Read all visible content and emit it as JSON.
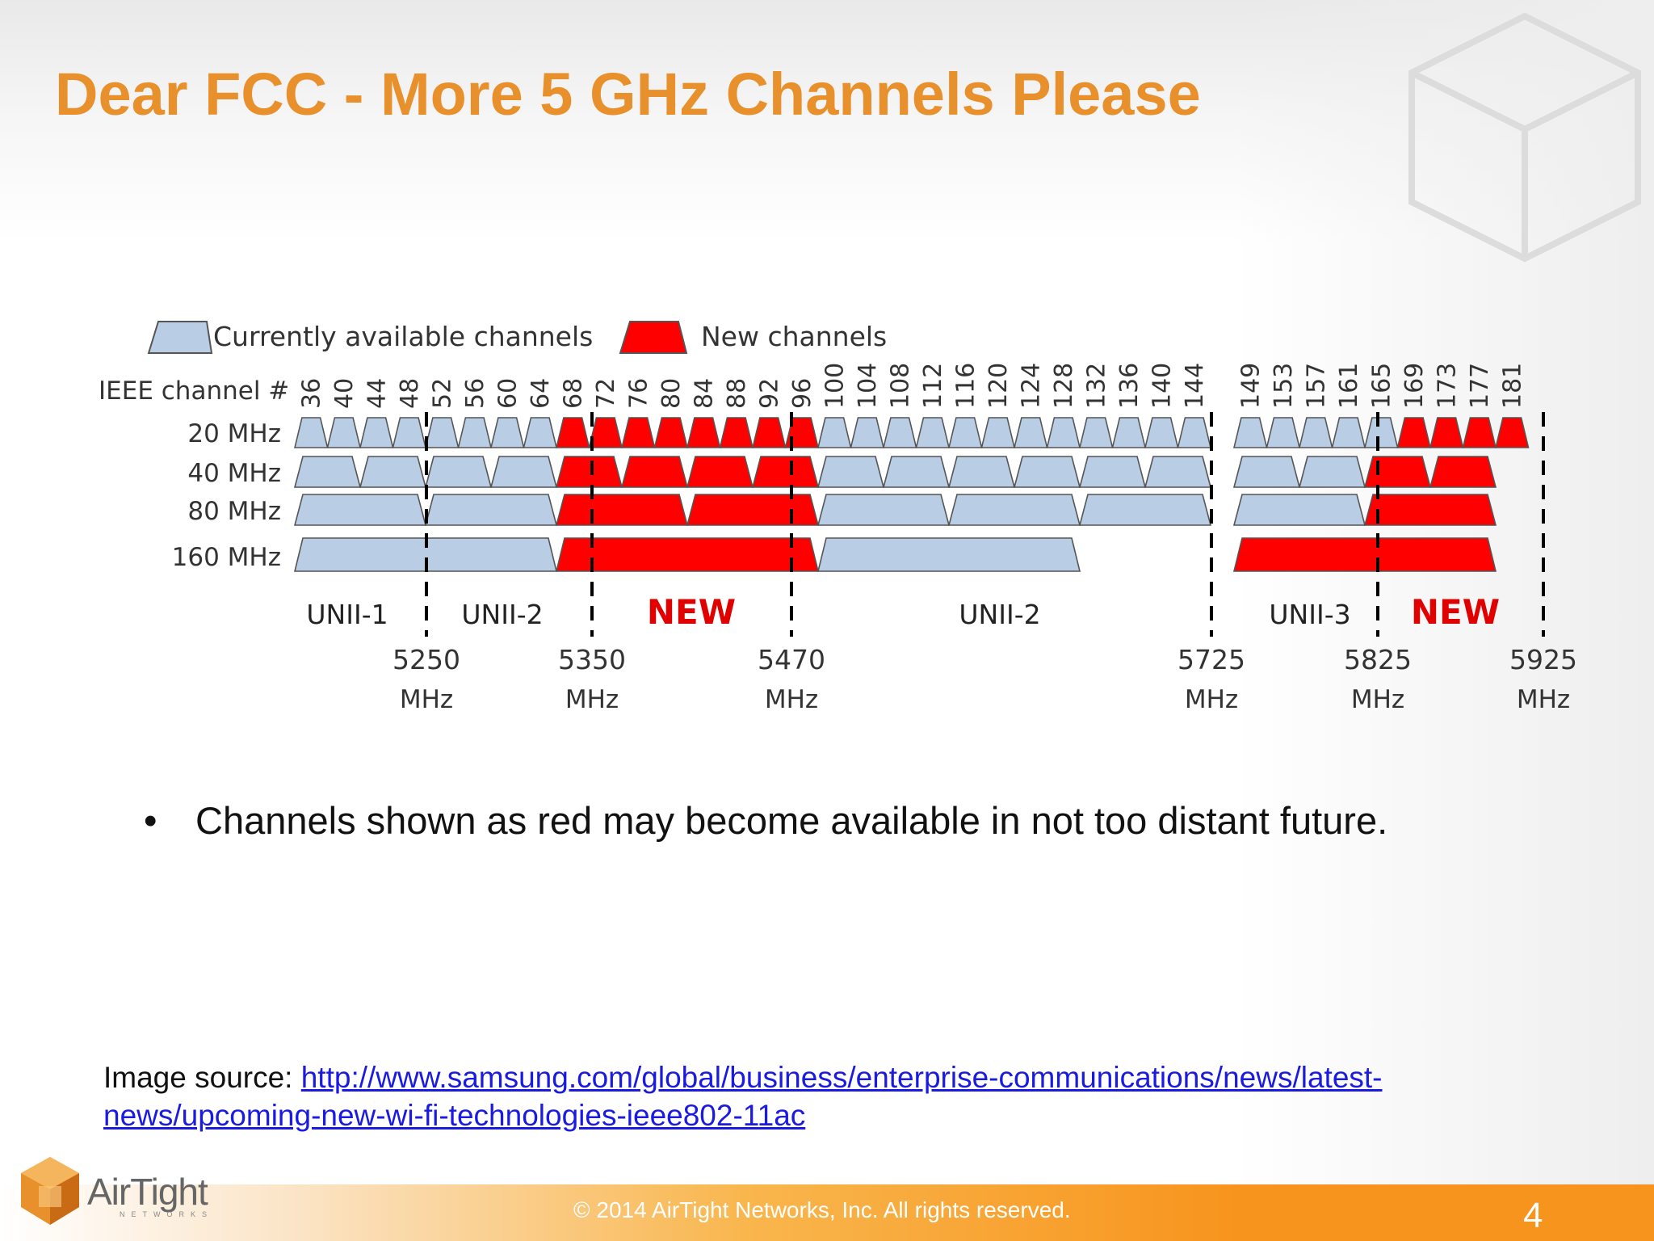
{
  "slide": {
    "title": "Dear FCC - More 5 GHz Channels Please",
    "bullet": "Channels shown as red may become available in not too distant future.",
    "bullet_symbol": "•",
    "source_label": "Image source: ",
    "source_link": "http://www.samsung.com/global/business/enterprise-communications/news/latest-news/upcoming-new-wi-fi-technologies-ieee802-11ac",
    "copyright": "© 2014 AirTight Networks, Inc. All rights reserved.",
    "page_number": "4",
    "logo_text": "AirTight",
    "logo_sub": "NETWORKS"
  },
  "diagram": {
    "legend_current": "Currently available channels",
    "legend_new": "New channels",
    "channel_header": "IEEE channel #",
    "colors": {
      "current": "#b9cde5",
      "new": "#ff0000",
      "outline": "#555555"
    },
    "channels": [
      "36",
      "40",
      "44",
      "48",
      "52",
      "56",
      "60",
      "64",
      "68",
      "72",
      "76",
      "80",
      "84",
      "88",
      "92",
      "96",
      "100",
      "104",
      "108",
      "112",
      "116",
      "120",
      "124",
      "128",
      "132",
      "136",
      "140",
      "144",
      "149",
      "153",
      "157",
      "161",
      "165",
      "169",
      "173",
      "177",
      "181"
    ],
    "rows": [
      {
        "label": "20 MHz",
        "blocks": [
          {
            "from": 0,
            "span": 1,
            "status": "current"
          },
          {
            "from": 1,
            "span": 1,
            "status": "current"
          },
          {
            "from": 2,
            "span": 1,
            "status": "current"
          },
          {
            "from": 3,
            "span": 1,
            "status": "current"
          },
          {
            "from": 4,
            "span": 1,
            "status": "current"
          },
          {
            "from": 5,
            "span": 1,
            "status": "current"
          },
          {
            "from": 6,
            "span": 1,
            "status": "current"
          },
          {
            "from": 7,
            "span": 1,
            "status": "current"
          },
          {
            "from": 8,
            "span": 1,
            "status": "new"
          },
          {
            "from": 9,
            "span": 1,
            "status": "new"
          },
          {
            "from": 10,
            "span": 1,
            "status": "new"
          },
          {
            "from": 11,
            "span": 1,
            "status": "new"
          },
          {
            "from": 12,
            "span": 1,
            "status": "new"
          },
          {
            "from": 13,
            "span": 1,
            "status": "new"
          },
          {
            "from": 14,
            "span": 1,
            "status": "new"
          },
          {
            "from": 15,
            "span": 1,
            "status": "new"
          },
          {
            "from": 16,
            "span": 1,
            "status": "current"
          },
          {
            "from": 17,
            "span": 1,
            "status": "current"
          },
          {
            "from": 18,
            "span": 1,
            "status": "current"
          },
          {
            "from": 19,
            "span": 1,
            "status": "current"
          },
          {
            "from": 20,
            "span": 1,
            "status": "current"
          },
          {
            "from": 21,
            "span": 1,
            "status": "current"
          },
          {
            "from": 22,
            "span": 1,
            "status": "current"
          },
          {
            "from": 23,
            "span": 1,
            "status": "current"
          },
          {
            "from": 24,
            "span": 1,
            "status": "current"
          },
          {
            "from": 25,
            "span": 1,
            "status": "current"
          },
          {
            "from": 26,
            "span": 1,
            "status": "current"
          },
          {
            "from": 27,
            "span": 1,
            "status": "current"
          },
          {
            "from": 28,
            "span": 1,
            "status": "current"
          },
          {
            "from": 29,
            "span": 1,
            "status": "current"
          },
          {
            "from": 30,
            "span": 1,
            "status": "current"
          },
          {
            "from": 31,
            "span": 1,
            "status": "current"
          },
          {
            "from": 32,
            "span": 1,
            "status": "current"
          },
          {
            "from": 33,
            "span": 1,
            "status": "new"
          },
          {
            "from": 34,
            "span": 1,
            "status": "new"
          },
          {
            "from": 35,
            "span": 1,
            "status": "new"
          },
          {
            "from": 36,
            "span": 1,
            "status": "new"
          }
        ]
      },
      {
        "label": "40 MHz",
        "blocks": [
          {
            "from": 0,
            "span": 2,
            "status": "current"
          },
          {
            "from": 2,
            "span": 2,
            "status": "current"
          },
          {
            "from": 4,
            "span": 2,
            "status": "current"
          },
          {
            "from": 6,
            "span": 2,
            "status": "current"
          },
          {
            "from": 8,
            "span": 2,
            "status": "new"
          },
          {
            "from": 10,
            "span": 2,
            "status": "new"
          },
          {
            "from": 12,
            "span": 2,
            "status": "new"
          },
          {
            "from": 14,
            "span": 2,
            "status": "new"
          },
          {
            "from": 16,
            "span": 2,
            "status": "current"
          },
          {
            "from": 18,
            "span": 2,
            "status": "current"
          },
          {
            "from": 20,
            "span": 2,
            "status": "current"
          },
          {
            "from": 22,
            "span": 2,
            "status": "current"
          },
          {
            "from": 24,
            "span": 2,
            "status": "current"
          },
          {
            "from": 26,
            "span": 2,
            "status": "current"
          },
          {
            "from": 28,
            "span": 2,
            "status": "current"
          },
          {
            "from": 30,
            "span": 2,
            "status": "current"
          },
          {
            "from": 32,
            "span": 2,
            "status": "new"
          },
          {
            "from": 34,
            "span": 2,
            "status": "new"
          }
        ]
      },
      {
        "label": "80 MHz",
        "blocks": [
          {
            "from": 0,
            "span": 4,
            "status": "current"
          },
          {
            "from": 4,
            "span": 4,
            "status": "current"
          },
          {
            "from": 8,
            "span": 4,
            "status": "new"
          },
          {
            "from": 12,
            "span": 4,
            "status": "new"
          },
          {
            "from": 16,
            "span": 4,
            "status": "current"
          },
          {
            "from": 20,
            "span": 4,
            "status": "current"
          },
          {
            "from": 24,
            "span": 4,
            "status": "current"
          },
          {
            "from": 28,
            "span": 4,
            "status": "current"
          },
          {
            "from": 32,
            "span": 4,
            "status": "new"
          }
        ]
      },
      {
        "label": "160 MHz",
        "blocks": [
          {
            "from": 0,
            "span": 8,
            "status": "current"
          },
          {
            "from": 8,
            "span": 8,
            "status": "new"
          },
          {
            "from": 16,
            "span": 8,
            "status": "current"
          },
          {
            "from": 28,
            "span": 8,
            "status": "new"
          }
        ]
      }
    ],
    "bands": [
      {
        "label": "UNII-1",
        "status": "current"
      },
      {
        "label": "UNII-2",
        "status": "current"
      },
      {
        "label": "NEW",
        "status": "new"
      },
      {
        "label": "UNII-2",
        "status": "current"
      },
      {
        "label": "UNII-3",
        "status": "current"
      },
      {
        "label": "NEW",
        "status": "new"
      }
    ],
    "frequencies": [
      {
        "value": "5250",
        "unit": "MHz"
      },
      {
        "value": "5350",
        "unit": "MHz"
      },
      {
        "value": "5470",
        "unit": "MHz"
      },
      {
        "value": "5725",
        "unit": "MHz"
      },
      {
        "value": "5825",
        "unit": "MHz"
      },
      {
        "value": "5925",
        "unit": "MHz"
      }
    ]
  }
}
